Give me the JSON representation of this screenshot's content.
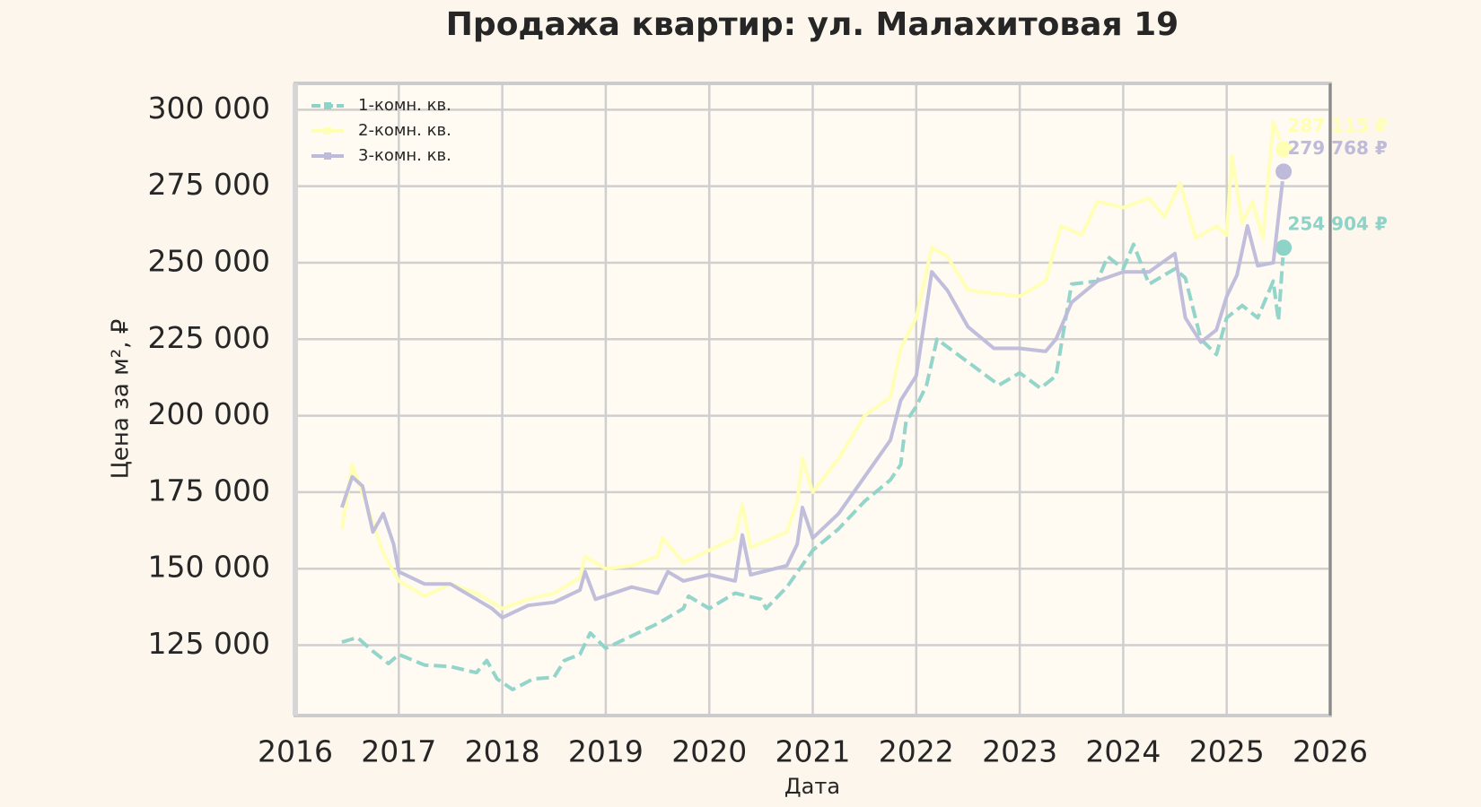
{
  "chart_data": {
    "type": "line",
    "title": "Продажа квартир: ул. Малахитовая 19",
    "xlabel": "Дата",
    "ylabel": "Цена за м², ₽",
    "xlim": [
      2016,
      2026
    ],
    "xticks": [
      2016,
      2017,
      2018,
      2019,
      2020,
      2021,
      2022,
      2023,
      2024,
      2025,
      2026
    ],
    "ylim": [
      102000,
      308600
    ],
    "yticks": [
      {
        "value": 125000,
        "label": "125 000"
      },
      {
        "value": 150000,
        "label": "150 000"
      },
      {
        "value": 175000,
        "label": "175 000"
      },
      {
        "value": 200000,
        "label": "200 000"
      },
      {
        "value": 225000,
        "label": "225 000"
      },
      {
        "value": 250000,
        "label": "250 000"
      },
      {
        "value": 275000,
        "label": "275 000"
      },
      {
        "value": 300000,
        "label": "300 000"
      }
    ],
    "grid": true,
    "legend": "upper left",
    "series": [
      {
        "name": "1-комн. кв.",
        "color": "#8dd3c7",
        "dashed": true,
        "end_label": "254 904 ₽",
        "x": [
          2016.45,
          2016.6,
          2016.75,
          2016.9,
          2017.0,
          2017.25,
          2017.5,
          2017.75,
          2017.85,
          2017.95,
          2018.1,
          2018.3,
          2018.5,
          2018.6,
          2018.75,
          2018.85,
          2019.0,
          2019.25,
          2019.5,
          2019.75,
          2019.8,
          2020.0,
          2020.25,
          2020.5,
          2020.55,
          2020.75,
          2021.0,
          2021.25,
          2021.5,
          2021.75,
          2021.85,
          2021.9,
          2022.0,
          2022.1,
          2022.2,
          2022.4,
          2022.6,
          2022.8,
          2023.0,
          2023.2,
          2023.35,
          2023.5,
          2023.75,
          2023.85,
          2024.0,
          2024.1,
          2024.25,
          2024.5,
          2024.6,
          2024.75,
          2024.9,
          2025.0,
          2025.15,
          2025.3,
          2025.45,
          2025.5,
          2025.55
        ],
        "values": [
          126000,
          127500,
          123000,
          119000,
          122000,
          118500,
          118000,
          116000,
          120000,
          114000,
          110500,
          114000,
          114500,
          120000,
          122000,
          129000,
          124000,
          128000,
          132000,
          137000,
          141000,
          137000,
          142000,
          140000,
          137000,
          144000,
          156000,
          163000,
          172000,
          179000,
          184000,
          198000,
          203000,
          210000,
          225000,
          220000,
          215000,
          210000,
          214000,
          209000,
          213000,
          243000,
          244000,
          252000,
          248000,
          256000,
          243000,
          248000,
          245000,
          225000,
          220000,
          232000,
          236000,
          232000,
          244000,
          231000,
          254904
        ]
      },
      {
        "name": "2-комн. кв.",
        "color": "#ffffb3",
        "dashed": false,
        "end_label": "287 115 ₽",
        "x": [
          2016.45,
          2016.55,
          2016.7,
          2016.85,
          2017.0,
          2017.25,
          2017.5,
          2017.75,
          2018.0,
          2018.25,
          2018.5,
          2018.75,
          2018.8,
          2019.0,
          2019.25,
          2019.5,
          2019.55,
          2019.75,
          2020.0,
          2020.25,
          2020.32,
          2020.4,
          2020.75,
          2020.85,
          2020.9,
          2021.0,
          2021.25,
          2021.5,
          2021.75,
          2021.85,
          2022.0,
          2022.15,
          2022.3,
          2022.5,
          2022.75,
          2023.0,
          2023.25,
          2023.4,
          2023.6,
          2023.75,
          2024.0,
          2024.25,
          2024.4,
          2024.55,
          2024.7,
          2024.9,
          2025.0,
          2025.05,
          2025.15,
          2025.25,
          2025.35,
          2025.45,
          2025.55
        ],
        "values": [
          163000,
          184000,
          170000,
          155000,
          146000,
          141000,
          145000,
          142000,
          137000,
          140000,
          142000,
          147000,
          154000,
          150000,
          151000,
          154000,
          160000,
          152000,
          156000,
          160000,
          171000,
          157000,
          162000,
          172000,
          186000,
          175000,
          186000,
          200000,
          206000,
          222000,
          232000,
          255000,
          252000,
          241000,
          240000,
          239000,
          244000,
          262000,
          259000,
          270000,
          268000,
          271000,
          265000,
          276000,
          258000,
          262000,
          259000,
          285000,
          263000,
          270000,
          258000,
          296000,
          287115
        ]
      },
      {
        "name": "3-комн. кв.",
        "color": "#bebada",
        "dashed": false,
        "end_label": "279 768 ₽",
        "x": [
          2016.45,
          2016.55,
          2016.65,
          2016.75,
          2016.85,
          2016.95,
          2017.0,
          2017.25,
          2017.5,
          2017.75,
          2017.9,
          2018.0,
          2018.25,
          2018.5,
          2018.75,
          2018.8,
          2018.9,
          2019.25,
          2019.5,
          2019.6,
          2019.75,
          2020.0,
          2020.25,
          2020.32,
          2020.4,
          2020.75,
          2020.85,
          2020.9,
          2021.0,
          2021.25,
          2021.5,
          2021.75,
          2021.85,
          2022.0,
          2022.15,
          2022.3,
          2022.5,
          2022.75,
          2023.0,
          2023.25,
          2023.35,
          2023.5,
          2023.75,
          2024.0,
          2024.25,
          2024.5,
          2024.6,
          2024.75,
          2024.9,
          2025.0,
          2025.1,
          2025.2,
          2025.3,
          2025.45,
          2025.55
        ],
        "values": [
          170000,
          180000,
          177000,
          162000,
          168000,
          158000,
          149000,
          145000,
          145000,
          140000,
          137000,
          134000,
          138000,
          139000,
          143000,
          149000,
          140000,
          144000,
          142000,
          149000,
          146000,
          148000,
          146000,
          161000,
          148000,
          151000,
          158000,
          170000,
          160000,
          168000,
          180000,
          192000,
          205000,
          213000,
          247000,
          241000,
          229000,
          222000,
          222000,
          221000,
          225000,
          237000,
          244000,
          247000,
          247000,
          253000,
          232000,
          224000,
          228000,
          239000,
          246000,
          262000,
          249000,
          250000,
          279768
        ]
      }
    ]
  }
}
